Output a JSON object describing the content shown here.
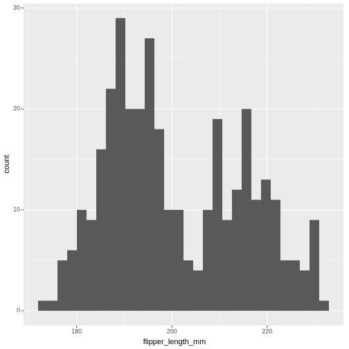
{
  "chart_data": {
    "type": "histogram",
    "x_label": "flipper_length_mm",
    "y_label": "count",
    "bins": [
      171.92,
      173.95,
      175.99,
      178.02,
      180.06,
      182.09,
      184.13,
      186.16,
      188.2,
      190.23,
      192.26,
      194.3,
      196.33,
      198.37,
      200.4,
      202.44,
      204.47,
      206.51,
      208.54,
      210.58,
      212.61,
      214.65,
      216.68,
      218.71,
      220.75,
      222.78,
      224.82,
      226.85,
      228.89,
      230.92,
      232.96
    ],
    "values": [
      1,
      1,
      5,
      6,
      10,
      9,
      16,
      22,
      29,
      20,
      20,
      27,
      18,
      10,
      10,
      5,
      4,
      10,
      19,
      9,
      12,
      20,
      11,
      13,
      11,
      5,
      5,
      4,
      9,
      1
    ],
    "color": "#595959",
    "xlim": [
      168.87,
      236.01
    ],
    "xticks": [
      180,
      200,
      220
    ],
    "ylim": [
      -1.45,
      30.45
    ],
    "yticks": [
      0,
      10,
      20,
      30
    ],
    "grid": true
  }
}
